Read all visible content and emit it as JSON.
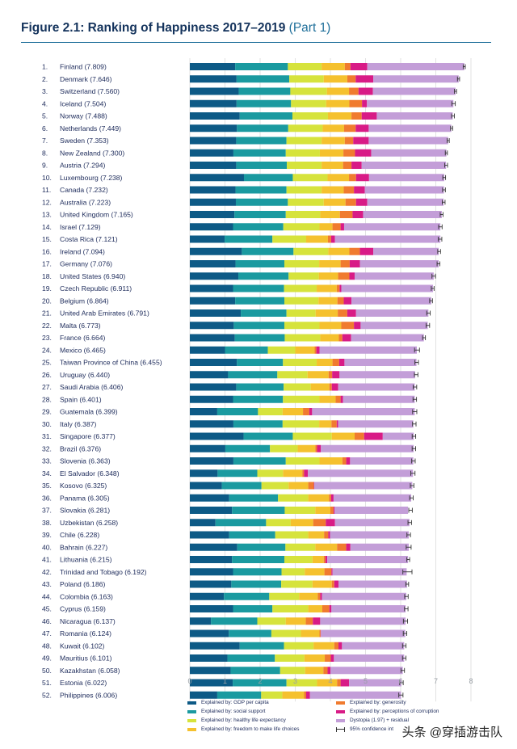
{
  "title": {
    "main": "Figure 2.1: Ranking of Happiness 2017–2019",
    "part": "(Part 1)"
  },
  "colors": {
    "gdp": "#0d5a86",
    "social": "#1a9aa0",
    "health": "#d6e33c",
    "freedom": "#f5c12e",
    "generosity": "#f07b2f",
    "corruption": "#d81b86",
    "dystopia": "#c39ed8",
    "ci": "#333333"
  },
  "legend": {
    "gdp": "Explained by: GDP per capita",
    "social": "Explained by: social support",
    "health": "Explained by: healthy life expectancy",
    "freedom": "Explained by: freedom to make life choices",
    "generosity": "Explained by: generosity",
    "corruption": "Explained by: perceptions of corruption",
    "dystopia": "Dystopia (1.97) + residual",
    "ci": "95% confidence int"
  },
  "watermark": "头条 @穿插游击队",
  "chart_data": {
    "type": "bar",
    "orientation": "horizontal",
    "stacked": true,
    "xlim": [
      0,
      8
    ],
    "x_ticks": [
      "0",
      "1",
      "2",
      "3",
      "4",
      "5",
      "6",
      "7",
      "8"
    ],
    "components": [
      "gdp",
      "social",
      "health",
      "freedom",
      "generosity",
      "corruption",
      "dystopia"
    ],
    "rows": [
      {
        "rank": "1.",
        "label": "Finland (7.809)",
        "score": 7.809,
        "gdp": 1.29,
        "social": 1.5,
        "health": 0.96,
        "freedom": 0.66,
        "generosity": 0.16,
        "corruption": 0.48,
        "dystopia": 2.76,
        "ci": 0.03
      },
      {
        "rank": "2.",
        "label": "Denmark (7.646)",
        "score": 7.646,
        "gdp": 1.33,
        "social": 1.5,
        "health": 0.98,
        "freedom": 0.67,
        "generosity": 0.24,
        "corruption": 0.5,
        "dystopia": 2.43,
        "ci": 0.03
      },
      {
        "rank": "3.",
        "label": "Switzerland (7.560)",
        "score": 7.56,
        "gdp": 1.39,
        "social": 1.47,
        "health": 1.04,
        "freedom": 0.63,
        "generosity": 0.27,
        "corruption": 0.41,
        "dystopia": 2.35,
        "ci": 0.03
      },
      {
        "rank": "4.",
        "label": "Iceland (7.504)",
        "score": 7.504,
        "gdp": 1.33,
        "social": 1.55,
        "health": 1.0,
        "freedom": 0.66,
        "generosity": 0.36,
        "corruption": 0.14,
        "dystopia": 2.46,
        "ci": 0.05
      },
      {
        "rank": "5.",
        "label": "Norway (7.488)",
        "score": 7.488,
        "gdp": 1.42,
        "social": 1.5,
        "health": 1.01,
        "freedom": 0.67,
        "generosity": 0.29,
        "corruption": 0.43,
        "dystopia": 2.16,
        "ci": 0.04
      },
      {
        "rank": "6.",
        "label": "Netherlands (7.449)",
        "score": 7.449,
        "gdp": 1.34,
        "social": 1.46,
        "health": 0.98,
        "freedom": 0.61,
        "generosity": 0.33,
        "corruption": 0.37,
        "dystopia": 2.35,
        "ci": 0.03
      },
      {
        "rank": "7.",
        "label": "Sweden (7.353)",
        "score": 7.353,
        "gdp": 1.32,
        "social": 1.43,
        "health": 1.0,
        "freedom": 0.66,
        "generosity": 0.24,
        "corruption": 0.44,
        "dystopia": 2.26,
        "ci": 0.03
      },
      {
        "rank": "8.",
        "label": "New Zealand (7.300)",
        "score": 7.3,
        "gdp": 1.24,
        "social": 1.49,
        "health": 0.97,
        "freedom": 0.67,
        "generosity": 0.33,
        "corruption": 0.46,
        "dystopia": 2.14,
        "ci": 0.03
      },
      {
        "rank": "9.",
        "label": "Austria (7.294)",
        "score": 7.294,
        "gdp": 1.32,
        "social": 1.44,
        "health": 0.99,
        "freedom": 0.61,
        "generosity": 0.24,
        "corruption": 0.29,
        "dystopia": 2.4,
        "ci": 0.04
      },
      {
        "rank": "10.",
        "label": "Luxembourg (7.238)",
        "score": 7.238,
        "gdp": 1.54,
        "social": 1.39,
        "health": 0.99,
        "freedom": 0.61,
        "generosity": 0.2,
        "corruption": 0.37,
        "dystopia": 2.14,
        "ci": 0.04
      },
      {
        "rank": "11.",
        "label": "Canada (7.232)",
        "score": 7.232,
        "gdp": 1.3,
        "social": 1.45,
        "health": 1.0,
        "freedom": 0.63,
        "generosity": 0.29,
        "corruption": 0.31,
        "dystopia": 2.25,
        "ci": 0.04
      },
      {
        "rank": "12.",
        "label": "Australia (7.223)",
        "score": 7.223,
        "gdp": 1.31,
        "social": 1.48,
        "health": 1.02,
        "freedom": 0.62,
        "generosity": 0.3,
        "corruption": 0.32,
        "dystopia": 2.17,
        "ci": 0.04
      },
      {
        "rank": "13.",
        "label": "United Kingdom (7.165)",
        "score": 7.165,
        "gdp": 1.27,
        "social": 1.46,
        "health": 0.98,
        "freedom": 0.56,
        "generosity": 0.36,
        "corruption": 0.3,
        "dystopia": 2.24,
        "ci": 0.04
      },
      {
        "rank": "14.",
        "label": "Israel (7.129)",
        "score": 7.129,
        "gdp": 1.23,
        "social": 1.43,
        "health": 1.03,
        "freedom": 0.37,
        "generosity": 0.23,
        "corruption": 0.1,
        "dystopia": 2.74,
        "ci": 0.05
      },
      {
        "rank": "15.",
        "label": "Costa Rica (7.121)",
        "score": 7.121,
        "gdp": 0.99,
        "social": 1.36,
        "health": 0.96,
        "freedom": 0.62,
        "generosity": 0.09,
        "corruption": 0.11,
        "dystopia": 3.0,
        "ci": 0.05
      },
      {
        "rank": "16.",
        "label": "Ireland (7.094)",
        "score": 7.094,
        "gdp": 1.48,
        "social": 1.47,
        "health": 0.99,
        "freedom": 0.6,
        "generosity": 0.3,
        "corruption": 0.38,
        "dystopia": 1.86,
        "ci": 0.04
      },
      {
        "rank": "17.",
        "label": "Germany (7.076)",
        "score": 7.076,
        "gdp": 1.3,
        "social": 1.39,
        "health": 0.99,
        "freedom": 0.61,
        "generosity": 0.26,
        "corruption": 0.29,
        "dystopia": 2.24,
        "ci": 0.04
      },
      {
        "rank": "18.",
        "label": "United States (6.940)",
        "score": 6.94,
        "gdp": 1.38,
        "social": 1.43,
        "health": 0.86,
        "freedom": 0.55,
        "generosity": 0.32,
        "corruption": 0.15,
        "dystopia": 2.25,
        "ci": 0.05
      },
      {
        "rank": "19.",
        "label": "Czech Republic (6.911)",
        "score": 6.911,
        "gdp": 1.23,
        "social": 1.45,
        "health": 0.93,
        "freedom": 0.57,
        "generosity": 0.08,
        "corruption": 0.05,
        "dystopia": 2.61,
        "ci": 0.04
      },
      {
        "rank": "20.",
        "label": "Belgium (6.864)",
        "score": 6.864,
        "gdp": 1.29,
        "social": 1.4,
        "health": 0.97,
        "freedom": 0.54,
        "generosity": 0.18,
        "corruption": 0.22,
        "dystopia": 2.27,
        "ci": 0.04
      },
      {
        "rank": "21.",
        "label": "United Arab Emirates (6.791)",
        "score": 6.791,
        "gdp": 1.45,
        "social": 1.3,
        "health": 0.83,
        "freedom": 0.63,
        "generosity": 0.27,
        "corruption": 0.25,
        "dystopia": 2.06,
        "ci": 0.05
      },
      {
        "rank": "22.",
        "label": "Malta (6.773)",
        "score": 6.773,
        "gdp": 1.25,
        "social": 1.44,
        "health": 1.0,
        "freedom": 0.62,
        "generosity": 0.36,
        "corruption": 0.19,
        "dystopia": 1.91,
        "ci": 0.05
      },
      {
        "rank": "23.",
        "label": "France (6.664)",
        "score": 6.664,
        "gdp": 1.28,
        "social": 1.42,
        "health": 1.01,
        "freedom": 0.53,
        "generosity": 0.1,
        "corruption": 0.25,
        "dystopia": 2.07,
        "ci": 0.04
      },
      {
        "rank": "24.",
        "label": "Mexico (6.465)",
        "score": 6.465,
        "gdp": 1.0,
        "social": 1.22,
        "health": 0.78,
        "freedom": 0.55,
        "generosity": 0.05,
        "corruption": 0.09,
        "dystopia": 2.77,
        "ci": 0.07
      },
      {
        "rank": "25.",
        "label": "Taiwan Province of China (6.455)",
        "score": 6.455,
        "gdp": 1.34,
        "social": 1.31,
        "health": 0.96,
        "freedom": 0.45,
        "generosity": 0.19,
        "corruption": 0.15,
        "dystopia": 2.05,
        "ci": 0.05
      },
      {
        "rank": "26.",
        "label": "Uruguay (6.440)",
        "score": 6.44,
        "gdp": 1.09,
        "social": 1.4,
        "health": 0.86,
        "freedom": 0.6,
        "generosity": 0.1,
        "corruption": 0.21,
        "dystopia": 2.15,
        "ci": 0.05
      },
      {
        "rank": "27.",
        "label": "Saudi Arabia (6.406)",
        "score": 6.406,
        "gdp": 1.32,
        "social": 1.35,
        "health": 0.77,
        "freedom": 0.53,
        "generosity": 0.07,
        "corruption": 0.18,
        "dystopia": 2.18,
        "ci": 0.05
      },
      {
        "rank": "28.",
        "label": "Spain (6.401)",
        "score": 6.401,
        "gdp": 1.23,
        "social": 1.42,
        "health": 1.04,
        "freedom": 0.46,
        "generosity": 0.14,
        "corruption": 0.07,
        "dystopia": 2.04,
        "ci": 0.05
      },
      {
        "rank": "29.",
        "label": "Guatemala (6.399)",
        "score": 6.399,
        "gdp": 0.78,
        "social": 1.16,
        "health": 0.7,
        "freedom": 0.58,
        "generosity": 0.18,
        "corruption": 0.08,
        "dystopia": 2.92,
        "ci": 0.06
      },
      {
        "rank": "30.",
        "label": "Italy (6.387)",
        "score": 6.387,
        "gdp": 1.24,
        "social": 1.4,
        "health": 1.04,
        "freedom": 0.35,
        "generosity": 0.15,
        "corruption": 0.04,
        "dystopia": 2.14,
        "ci": 0.05
      },
      {
        "rank": "31.",
        "label": "Singapore (6.377)",
        "score": 6.377,
        "gdp": 1.53,
        "social": 1.4,
        "health": 1.11,
        "freedom": 0.65,
        "generosity": 0.27,
        "corruption": 0.53,
        "dystopia": 0.88,
        "ci": 0.05
      },
      {
        "rank": "32.",
        "label": "Brazil (6.376)",
        "score": 6.376,
        "gdp": 1.01,
        "social": 1.27,
        "health": 0.79,
        "freedom": 0.5,
        "generosity": 0.05,
        "corruption": 0.11,
        "dystopia": 2.64,
        "ci": 0.05
      },
      {
        "rank": "33.",
        "label": "Slovenia (6.363)",
        "score": 6.363,
        "gdp": 1.24,
        "social": 1.49,
        "health": 0.96,
        "freedom": 0.65,
        "generosity": 0.11,
        "corruption": 0.11,
        "dystopia": 1.8,
        "ci": 0.05
      },
      {
        "rank": "34.",
        "label": "El Salvador (6.348)",
        "score": 6.348,
        "gdp": 0.79,
        "social": 1.13,
        "health": 0.73,
        "freedom": 0.55,
        "generosity": 0.05,
        "corruption": 0.11,
        "dystopia": 2.99,
        "ci": 0.06
      },
      {
        "rank": "35.",
        "label": "Kosovo (6.325)",
        "score": 6.325,
        "gdp": 0.91,
        "social": 1.13,
        "health": 0.77,
        "freedom": 0.56,
        "generosity": 0.16,
        "corruption": 0.01,
        "dystopia": 2.79,
        "ci": 0.05
      },
      {
        "rank": "36.",
        "label": "Panama (6.305)",
        "score": 6.305,
        "gdp": 1.12,
        "social": 1.39,
        "health": 0.86,
        "freedom": 0.59,
        "generosity": 0.06,
        "corruption": 0.07,
        "dystopia": 2.21,
        "ci": 0.05
      },
      {
        "rank": "37.",
        "label": "Slovakia (6.281)",
        "score": 6.281,
        "gdp": 1.2,
        "social": 1.5,
        "health": 0.87,
        "freedom": 0.43,
        "generosity": 0.09,
        "corruption": 0.03,
        "dystopia": 2.09,
        "ci": 0.05
      },
      {
        "rank": "38.",
        "label": "Uzbekistan (6.258)",
        "score": 6.258,
        "gdp": 0.73,
        "social": 1.44,
        "health": 0.7,
        "freedom": 0.64,
        "generosity": 0.36,
        "corruption": 0.26,
        "dystopia": 2.12,
        "ci": 0.05
      },
      {
        "rank": "39.",
        "label": "Chile (6.228)",
        "score": 6.228,
        "gdp": 1.12,
        "social": 1.31,
        "health": 0.94,
        "freedom": 0.45,
        "generosity": 0.12,
        "corruption": 0.05,
        "dystopia": 2.24,
        "ci": 0.05
      },
      {
        "rank": "40.",
        "label": "Bahrain (6.227)",
        "score": 6.227,
        "gdp": 1.35,
        "social": 1.37,
        "health": 0.85,
        "freedom": 0.62,
        "generosity": 0.26,
        "corruption": 0.12,
        "dystopia": 1.66,
        "ci": 0.07
      },
      {
        "rank": "41.",
        "label": "Lithuania (6.215)",
        "score": 6.215,
        "gdp": 1.2,
        "social": 1.49,
        "health": 0.8,
        "freedom": 0.32,
        "generosity": 0.05,
        "corruption": 0.05,
        "dystopia": 2.3,
        "ci": 0.04
      },
      {
        "rank": "42.",
        "label": "Trinidad and Tobago (6.192)",
        "score": 6.192,
        "gdp": 1.23,
        "social": 1.38,
        "health": 0.66,
        "freedom": 0.56,
        "generosity": 0.2,
        "corruption": 0.03,
        "dystopia": 2.11,
        "ci": 0.13
      },
      {
        "rank": "43.",
        "label": "Poland (6.186)",
        "score": 6.186,
        "gdp": 1.18,
        "social": 1.42,
        "health": 0.89,
        "freedom": 0.55,
        "generosity": 0.07,
        "corruption": 0.12,
        "dystopia": 1.95,
        "ci": 0.04
      },
      {
        "rank": "44.",
        "label": "Colombia (6.163)",
        "score": 6.163,
        "gdp": 0.97,
        "social": 1.29,
        "health": 0.85,
        "freedom": 0.53,
        "generosity": 0.07,
        "corruption": 0.05,
        "dystopia": 2.4,
        "ci": 0.05
      },
      {
        "rank": "45.",
        "label": "Cyprus (6.159)",
        "score": 6.159,
        "gdp": 1.23,
        "social": 1.12,
        "health": 1.02,
        "freedom": 0.4,
        "generosity": 0.2,
        "corruption": 0.06,
        "dystopia": 2.11,
        "ci": 0.05
      },
      {
        "rank": "46.",
        "label": "Nicaragua (6.137)",
        "score": 6.137,
        "gdp": 0.6,
        "social": 1.32,
        "health": 0.81,
        "freedom": 0.57,
        "generosity": 0.2,
        "corruption": 0.21,
        "dystopia": 2.43,
        "ci": 0.06
      },
      {
        "rank": "47.",
        "label": "Romania (6.124)",
        "score": 6.124,
        "gdp": 1.11,
        "social": 1.21,
        "health": 0.84,
        "freedom": 0.53,
        "generosity": 0.03,
        "corruption": 0.01,
        "dystopia": 2.4,
        "ci": 0.05
      },
      {
        "rank": "48.",
        "label": "Kuwait (6.102)",
        "score": 6.102,
        "gdp": 1.42,
        "social": 1.26,
        "health": 0.84,
        "freedom": 0.59,
        "generosity": 0.12,
        "corruption": 0.1,
        "dystopia": 1.77,
        "ci": 0.05
      },
      {
        "rank": "49.",
        "label": "Mauritius (6.101)",
        "score": 6.101,
        "gdp": 1.07,
        "social": 1.35,
        "health": 0.84,
        "freedom": 0.58,
        "generosity": 0.17,
        "corruption": 0.09,
        "dystopia": 2.0,
        "ci": 0.05
      },
      {
        "rank": "50.",
        "label": "Kazakhstan (6.058)",
        "score": 6.058,
        "gdp": 1.16,
        "social": 1.41,
        "health": 0.71,
        "freedom": 0.52,
        "generosity": 0.12,
        "corruption": 0.08,
        "dystopia": 2.06,
        "ci": 0.05
      },
      {
        "rank": "51.",
        "label": "Estonia (6.022)",
        "score": 6.022,
        "gdp": 1.22,
        "social": 1.53,
        "health": 0.87,
        "freedom": 0.57,
        "generosity": 0.1,
        "corruption": 0.24,
        "dystopia": 1.49,
        "ci": 0.05
      },
      {
        "rank": "52.",
        "label": "Philippines (6.006)",
        "score": 6.006,
        "gdp": 0.78,
        "social": 1.25,
        "health": 0.6,
        "freedom": 0.62,
        "generosity": 0.06,
        "corruption": 0.11,
        "dystopia": 2.59,
        "ci": 0.06
      }
    ]
  }
}
